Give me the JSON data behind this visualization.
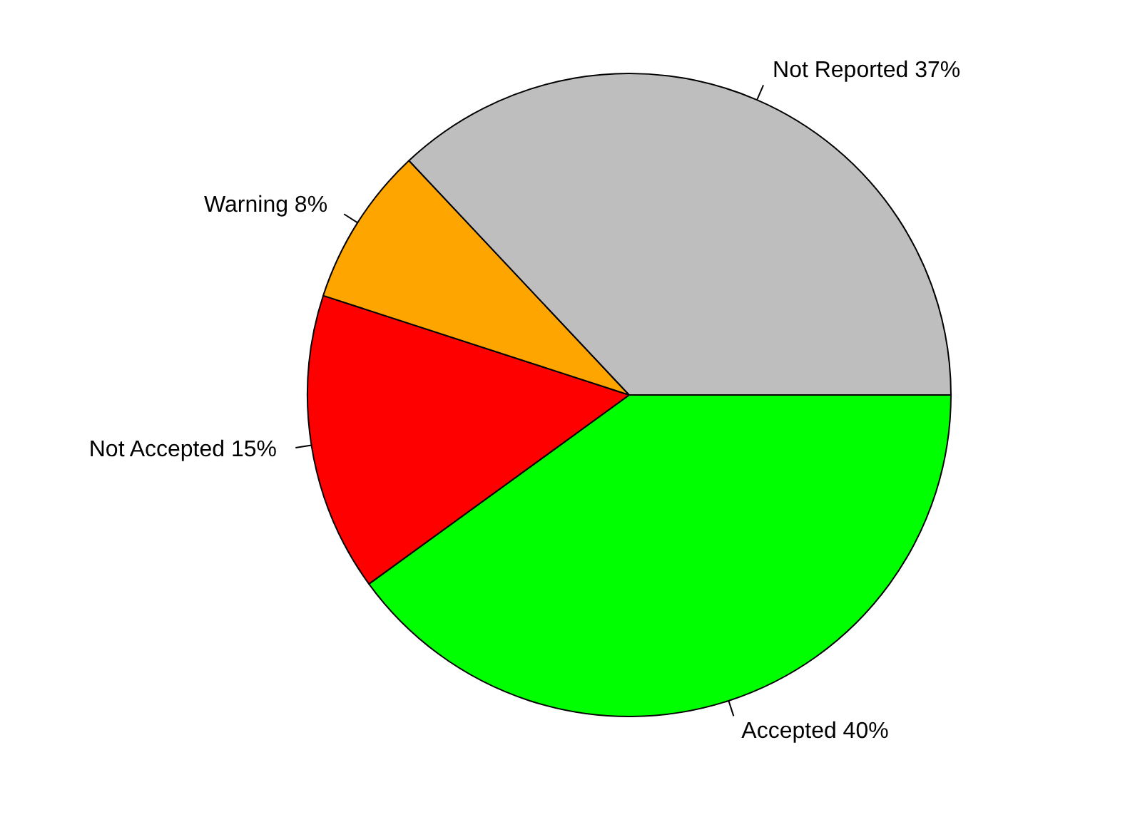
{
  "chart_data": {
    "type": "pie",
    "categories": [
      "Accepted",
      "Not Accepted",
      "Warning",
      "Not Reported"
    ],
    "values": [
      40,
      15,
      8,
      37
    ],
    "value_labels": [
      "40%",
      "15%",
      "8%",
      "37%"
    ],
    "colors": [
      "#00ff00",
      "#ff0000",
      "#ffa500",
      "#bebebe"
    ]
  }
}
